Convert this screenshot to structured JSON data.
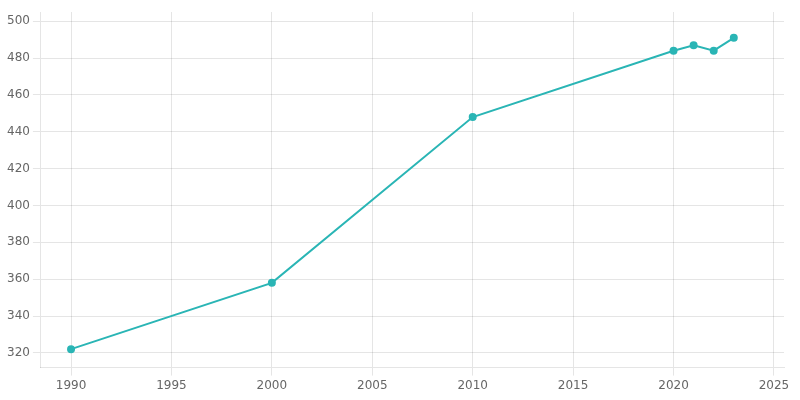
{
  "chart_data": {
    "type": "line",
    "x": [
      1990,
      2000,
      2010,
      2020,
      2021,
      2022,
      2023
    ],
    "values": [
      322,
      358,
      448,
      484,
      487,
      484,
      491
    ],
    "color": "#2ab5b5",
    "marker": "circle",
    "xlim": [
      1988.5,
      2025.5
    ],
    "ylim": [
      312,
      505
    ],
    "xticks": [
      1990,
      1995,
      2000,
      2005,
      2010,
      2015,
      2020,
      2025
    ],
    "yticks": [
      320,
      340,
      360,
      380,
      400,
      420,
      440,
      460,
      480,
      500
    ],
    "grid": true
  }
}
